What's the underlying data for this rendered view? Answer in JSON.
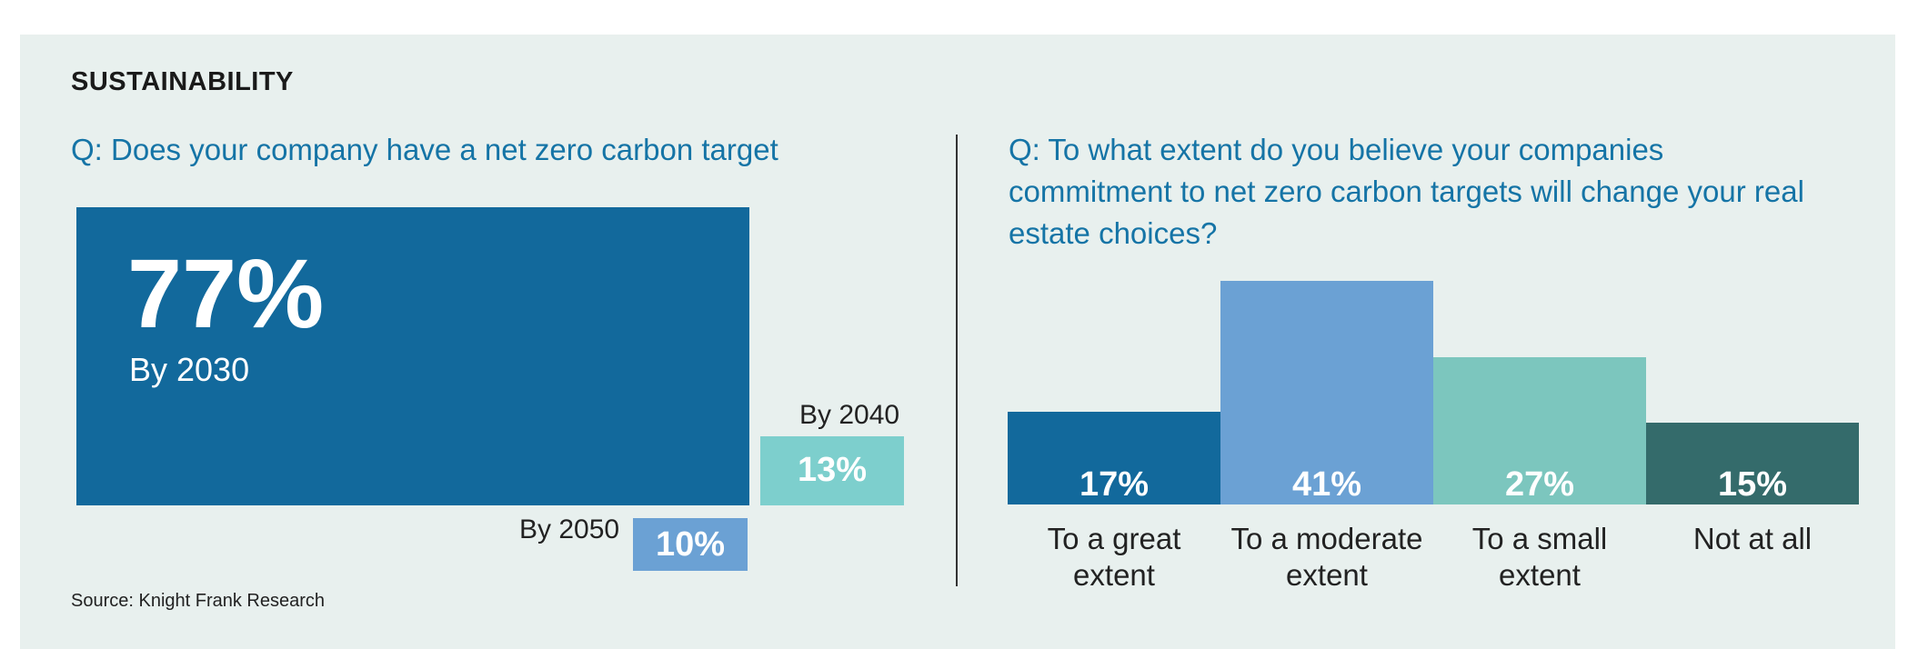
{
  "section_title": "SUSTAINABILITY",
  "left": {
    "question": "Q: Does your company have a net zero carbon target",
    "by2030": {
      "value": 77,
      "value_label": "77%",
      "label": "By 2030",
      "color": "#12699c"
    },
    "by2040": {
      "value": 13,
      "value_label": "13%",
      "label": "By 2040",
      "color": "#7dcfcd"
    },
    "by2050": {
      "value": 10,
      "value_label": "10%",
      "label": "By 2050",
      "color": "#6ba1d4"
    }
  },
  "right": {
    "question": "Q: To what extent do you believe your companies commitment to net zero carbon targets will change your real estate choices?"
  },
  "source": "Source: Knight Frank Research",
  "chart_data": [
    {
      "type": "area",
      "title": "Q: Does your company have a net zero carbon target",
      "categories": [
        "By 2030",
        "By 2040",
        "By 2050"
      ],
      "values": [
        77,
        13,
        10
      ],
      "value_labels": [
        "77%",
        "13%",
        "10%"
      ],
      "colors": [
        "#12699c",
        "#7dcfcd",
        "#6ba1d4"
      ]
    },
    {
      "type": "bar",
      "title": "Q: To what extent do you believe your companies commitment to net zero carbon targets will change your real estate choices?",
      "categories": [
        [
          "To a great",
          "extent"
        ],
        [
          "To a moderate",
          "extent"
        ],
        [
          "To a small",
          "extent"
        ],
        [
          "Not at all"
        ]
      ],
      "values": [
        17,
        41,
        27,
        15
      ],
      "value_labels": [
        "17%",
        "41%",
        "27%",
        "15%"
      ],
      "colors": [
        "#12699c",
        "#6ba1d4",
        "#7cc6be",
        "#346b6b"
      ],
      "ylim": [
        0,
        41
      ],
      "grid": false
    }
  ]
}
